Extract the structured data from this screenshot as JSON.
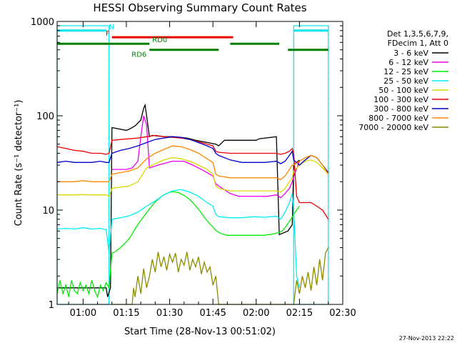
{
  "chart_data": {
    "type": "line",
    "title": "HESSI Observing Summary Count Rates",
    "xlabel": "Start Time (28-Nov-13 00:51:02)",
    "ylabel": "Count Rate (s⁻¹ detector⁻¹)",
    "x_unit": "minutes after 00:51:02",
    "xlim": [
      0,
      99
    ],
    "ylim": [
      1,
      1000
    ],
    "y_scale": "log",
    "x_ticks": [
      {
        "value": 9,
        "label": "01:00"
      },
      {
        "value": 24,
        "label": "01:15"
      },
      {
        "value": 39,
        "label": "01:30"
      },
      {
        "value": 54,
        "label": "01:45"
      },
      {
        "value": 69,
        "label": "02:00"
      },
      {
        "value": 84,
        "label": "02:15"
      },
      {
        "value": 99,
        "label": "02:30"
      }
    ],
    "y_ticks": [
      {
        "value": 1,
        "label": "1"
      },
      {
        "value": 10,
        "label": "10"
      },
      {
        "value": 100,
        "label": "100"
      },
      {
        "value": 1000,
        "label": "1000"
      }
    ],
    "legend_header": [
      "Det 1,3,5,6,7,9,",
      "FDecim 1, Att 0"
    ],
    "legend_position": "outside-right",
    "footer": "27-Nov-2013 22:22",
    "grid": false,
    "night_dashes": [
      18,
      94
    ],
    "day_boxes": [
      [
        0,
        18
      ],
      [
        82,
        94
      ]
    ],
    "flags": [
      {
        "label": "N",
        "color": "#00e5ee",
        "level": 800,
        "segments": [
          [
            0,
            17
          ],
          [
            82,
            94
          ]
        ]
      },
      {
        "label": "F",
        "color": "#ee0000",
        "level": 680,
        "segments": [
          [
            19,
            61
          ]
        ]
      },
      {
        "label": "RD0",
        "color": "#007f00",
        "level": 580,
        "segments": [
          [
            0,
            32
          ],
          [
            60,
            77
          ]
        ]
      },
      {
        "label": "RD6",
        "color": "#007f00",
        "level": 500,
        "segments": [
          [
            32,
            56
          ],
          [
            80,
            94
          ]
        ]
      }
    ],
    "series": [
      {
        "name": "3 - 6 keV",
        "color": "#000000",
        "x": [
          0,
          17,
          17.5,
          18.5,
          19,
          24,
          25,
          27,
          29,
          30,
          30.5,
          31,
          32,
          33,
          37,
          40,
          45,
          48,
          55,
          56,
          58,
          65,
          69,
          70,
          76,
          77,
          80,
          81.5,
          82,
          84
        ],
        "y": [
          1.5,
          1.5,
          1.2,
          1.5,
          75,
          70,
          72,
          78,
          90,
          120,
          130,
          100,
          60,
          62,
          60,
          60,
          58,
          55,
          50,
          48,
          55,
          55,
          55,
          57,
          60,
          5.5,
          6,
          7,
          30,
          34
        ]
      },
      {
        "name": "6 - 12 keV",
        "color": "#ee00ee",
        "x": [
          19,
          24,
          26,
          28,
          29,
          30,
          31,
          32,
          35,
          40,
          44,
          47,
          50,
          54,
          55,
          56,
          60,
          63,
          66,
          70,
          73,
          76,
          77.5,
          79,
          80.5,
          81.5,
          82.5,
          84
        ],
        "y": [
          27,
          27,
          28,
          33,
          60,
          100,
          80,
          28,
          30,
          33,
          33,
          30,
          27,
          23,
          19,
          18,
          15,
          14,
          14,
          14,
          14,
          14.5,
          13.5,
          15,
          17,
          20,
          25,
          33
        ]
      },
      {
        "name": "12 - 25 keV",
        "color": "#00ee00",
        "x": [
          0,
          1,
          2,
          3,
          4,
          5,
          6,
          7,
          8,
          9,
          10,
          11,
          12,
          13,
          14,
          15,
          16,
          17,
          18,
          19,
          20,
          21,
          22,
          23,
          24,
          25,
          26,
          27,
          28,
          29,
          30,
          31,
          32,
          33,
          34,
          35,
          36,
          37,
          38,
          39,
          40,
          41,
          42,
          43,
          44,
          45,
          46,
          47,
          48,
          49,
          50,
          51,
          52,
          53,
          54,
          55,
          56,
          57,
          58,
          59,
          60,
          61,
          62,
          63,
          64,
          65,
          66,
          67,
          68,
          69,
          70,
          71,
          72,
          73,
          74,
          75,
          76,
          77,
          78,
          79,
          80,
          81,
          82,
          83,
          84
        ],
        "y": [
          1.3,
          1.8,
          1.3,
          1.6,
          1.2,
          1.8,
          1.4,
          1.3,
          1.7,
          1.4,
          1.6,
          1.3,
          1.8,
          1.4,
          1.2,
          1.6,
          1.4,
          1.7,
          1.5,
          3.5,
          3.6,
          3.8,
          4.0,
          4.3,
          4.6,
          5.0,
          5.6,
          6.3,
          7.0,
          7.8,
          8.5,
          9.4,
          10.3,
          11.2,
          12.2,
          13.0,
          13.8,
          14.5,
          15.0,
          15.5,
          15.6,
          15.6,
          15.3,
          14.8,
          14.3,
          13.6,
          12.9,
          12.0,
          11.1,
          10.2,
          9.3,
          8.4,
          7.7,
          7.1,
          6.6,
          6.1,
          5.8,
          5.6,
          5.5,
          5.4,
          5.4,
          5.4,
          5.4,
          5.4,
          5.4,
          5.4,
          5.4,
          5.4,
          5.4,
          5.4,
          5.4,
          5.4,
          5.4,
          5.5,
          5.5,
          5.6,
          5.7,
          5.8,
          6.0,
          6.5,
          7.2,
          8.0,
          9.0,
          10.0,
          11.0
        ]
      },
      {
        "name": "25 - 50 keV",
        "color": "#00eeee",
        "x": [
          0,
          3,
          6,
          9,
          12,
          15,
          17,
          18,
          19,
          22,
          25,
          28,
          31,
          34,
          37,
          40,
          43,
          46,
          49,
          52,
          54,
          55,
          56,
          60,
          64,
          68,
          72,
          76,
          77.5,
          79,
          80.5,
          81.5,
          82,
          83,
          84
        ],
        "y": [
          6.3,
          6.4,
          6.3,
          6.5,
          6.3,
          6.4,
          6.2,
          3.5,
          8.0,
          8.3,
          8.7,
          9.5,
          11.0,
          12.5,
          14.5,
          16.0,
          16.5,
          15.5,
          14.0,
          12.0,
          11.0,
          9.0,
          8.5,
          8.3,
          8.3,
          8.5,
          8.4,
          8.6,
          8.0,
          9.5,
          12.0,
          15.0,
          10.0,
          2.0,
          1.5
        ]
      },
      {
        "name": "50 - 100 keV",
        "color": "#d8d800",
        "x": [
          0,
          3,
          6,
          9,
          12,
          15,
          17,
          18,
          19,
          22,
          25,
          28,
          31,
          34,
          37,
          40,
          43,
          46,
          49,
          52,
          54,
          55,
          56,
          60,
          64,
          68,
          72,
          76,
          77.5,
          79,
          80.5,
          81.5,
          82,
          83,
          84,
          86,
          88,
          90,
          92,
          94
        ],
        "y": [
          14.5,
          14.5,
          14.5,
          14.6,
          14.5,
          14.5,
          14.5,
          14.0,
          17.0,
          17.5,
          18.0,
          20.0,
          28.0,
          31.0,
          34.0,
          36.0,
          35.0,
          33.0,
          30.0,
          27.0,
          24.0,
          18.0,
          17.0,
          16.0,
          16.0,
          16.0,
          16.0,
          16.0,
          15.5,
          17.0,
          20.0,
          22.0,
          26.0,
          28.0,
          30.0,
          33.0,
          34.0,
          32.0,
          28.0,
          24.0
        ]
      },
      {
        "name": "100 - 300 keV",
        "color": "#ee0000",
        "x": [
          0,
          3,
          6,
          9,
          12,
          15,
          17,
          18,
          19,
          22,
          25,
          28,
          31,
          34,
          37,
          40,
          43,
          46,
          49,
          52,
          54,
          55,
          56,
          60,
          64,
          68,
          72,
          76,
          77.5,
          79,
          80.5,
          81.5,
          82,
          83,
          84,
          86,
          88,
          90,
          92,
          94
        ],
        "y": [
          47,
          45,
          43,
          42,
          40,
          40,
          39,
          40,
          55,
          56,
          57,
          58,
          60,
          62,
          60,
          59,
          58,
          56,
          53,
          50,
          48,
          42,
          41,
          40,
          40,
          40,
          40,
          40,
          39,
          40,
          42,
          45,
          40,
          14,
          12,
          12,
          12,
          11,
          10,
          8
        ]
      },
      {
        "name": "300 - 800 keV",
        "color": "#0000cc",
        "x": [
          0,
          3,
          6,
          9,
          12,
          15,
          17,
          18,
          19,
          22,
          25,
          28,
          31,
          34,
          37,
          40,
          43,
          46,
          49,
          52,
          54,
          55,
          56,
          60,
          64,
          68,
          72,
          76,
          77.5,
          79,
          80.5,
          81.5,
          82,
          84,
          86,
          88,
          90,
          92,
          94
        ],
        "y": [
          32,
          33,
          32,
          32,
          32,
          33,
          32,
          32,
          40,
          43,
          45,
          48,
          52,
          56,
          58,
          60,
          59,
          56,
          52,
          48,
          45,
          40,
          38,
          34,
          32,
          32,
          32,
          33,
          31,
          33,
          38,
          42,
          34,
          30,
          34,
          38,
          36,
          30,
          25
        ]
      },
      {
        "name": "800 - 7000 keV",
        "color": "#ff8800",
        "x": [
          0,
          3,
          6,
          9,
          12,
          15,
          17,
          18,
          19,
          22,
          25,
          28,
          31,
          34,
          37,
          40,
          43,
          46,
          49,
          52,
          54,
          55,
          56,
          60,
          64,
          68,
          72,
          76,
          77.5,
          79,
          80.5,
          81.5,
          82,
          84,
          86,
          88,
          90,
          92,
          94
        ],
        "y": [
          20,
          20,
          20,
          20.5,
          20,
          20,
          20,
          20,
          24,
          25,
          26,
          28,
          35,
          40,
          44,
          48,
          47,
          44,
          40,
          35,
          32,
          24,
          23,
          22,
          22,
          22,
          22,
          22,
          21,
          23,
          27,
          30,
          30,
          33,
          36,
          38,
          36,
          30,
          24
        ]
      },
      {
        "name": "7000 - 20000 keV",
        "color": "#8b8b00",
        "x": [
          19,
          26,
          26.5,
          27,
          28,
          29,
          30,
          31,
          32,
          33,
          34,
          35,
          36,
          37,
          38,
          39,
          40,
          41,
          42,
          43,
          44,
          45,
          46,
          47,
          48,
          49,
          50,
          51,
          52,
          53,
          54,
          55,
          56,
          82,
          83,
          84,
          85,
          86,
          87,
          88,
          89,
          90,
          91,
          92,
          93,
          94
        ],
        "y": [
          1,
          1,
          1.5,
          1.2,
          2.0,
          1.3,
          2.4,
          1.5,
          2.0,
          3.0,
          2.2,
          3.6,
          2.5,
          3.2,
          2.3,
          3.4,
          2.8,
          3.5,
          2.2,
          3.0,
          2.6,
          3.6,
          2.3,
          3.0,
          2.5,
          3.2,
          2.1,
          2.8,
          2.2,
          2.5,
          1.6,
          2.0,
          1,
          1,
          1.8,
          1.3,
          2.0,
          1.5,
          2.2,
          1.4,
          2.5,
          1.6,
          3.0,
          1.8,
          3.5,
          4.0
        ]
      }
    ]
  }
}
